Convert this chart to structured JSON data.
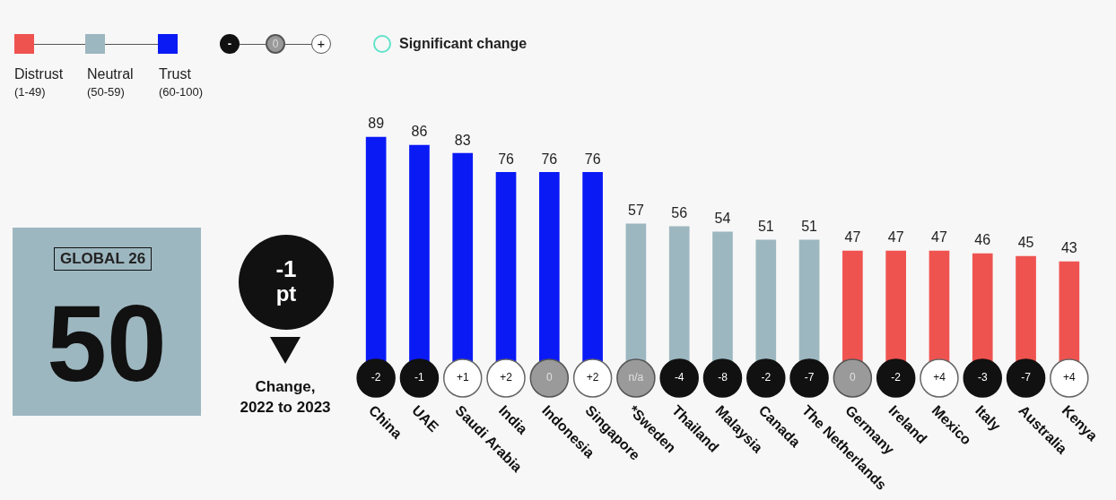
{
  "chart_data": {
    "type": "bar",
    "categories": [
      "China",
      "UAE",
      "Saudi Arabia",
      "India",
      "Indonesia",
      "Singapore",
      "*Sweden",
      "Thailand",
      "Malaysia",
      "Canada",
      "The Netherlands",
      "Germany",
      "Ireland",
      "Mexico",
      "Italy",
      "Australia",
      "Kenya"
    ],
    "values": [
      89,
      86,
      83,
      76,
      76,
      76,
      57,
      56,
      54,
      51,
      51,
      47,
      47,
      47,
      46,
      45,
      43
    ],
    "colors": [
      "#0a1af5",
      "#0a1af5",
      "#0a1af5",
      "#0a1af5",
      "#0a1af5",
      "#0a1af5",
      "#9db7c0",
      "#9db7c0",
      "#9db7c0",
      "#9db7c0",
      "#9db7c0",
      "#ef5350",
      "#ef5350",
      "#ef5350",
      "#ef5350",
      "#ef5350",
      "#ef5350"
    ],
    "data_labels": true,
    "annotations": [
      "Distrust",
      "(1-49)",
      "Neutral",
      "(50-59)",
      "Trust",
      "(60-100)",
      "-",
      "0",
      "+",
      "Significant change",
      "GLOBAL 26",
      "50",
      "-1",
      "pt",
      "Change,",
      "2022 to 2023",
      "-2",
      "-1",
      "+1",
      "+2",
      "0",
      "+2",
      "n/a",
      "-4",
      "-8",
      "-2",
      "-7",
      "0",
      "-2",
      "+4",
      "-3",
      "-7",
      "+4"
    ]
  }
}
